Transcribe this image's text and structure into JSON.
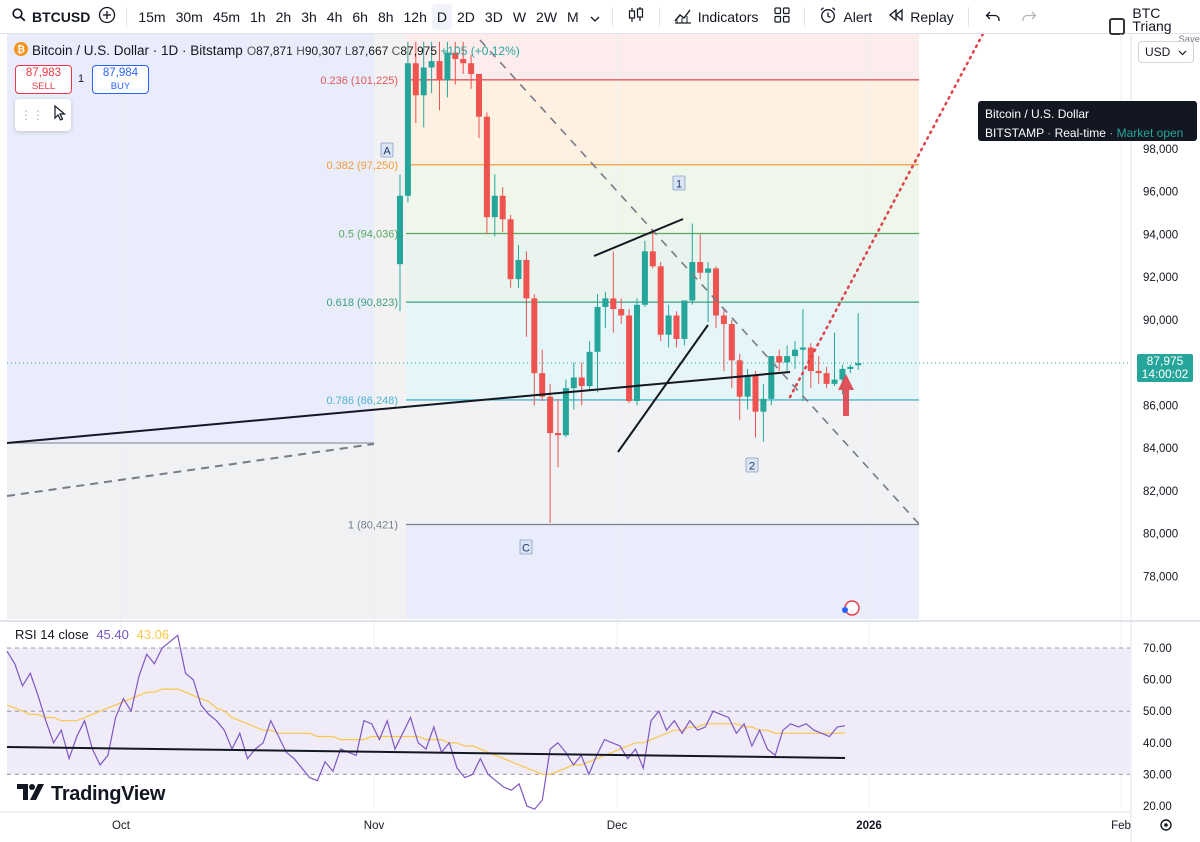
{
  "toolbar": {
    "symbol": "BTCUSD",
    "timeframes": [
      "15m",
      "30m",
      "45m",
      "1h",
      "2h",
      "3h",
      "4h",
      "6h",
      "8h",
      "12h",
      "D",
      "2D",
      "3D",
      "W",
      "2W",
      "M"
    ],
    "active_timeframe": "D",
    "indicators_label": "Indicators",
    "alert_label": "Alert",
    "replay_label": "Replay",
    "layout_name": "BTC Triang",
    "save_label": "Save"
  },
  "legend": {
    "title": "Bitcoin / U.S. Dollar · 1D · Bitstamp",
    "o_label": "O",
    "o": "87,871",
    "h_label": "H",
    "h": "90,307",
    "l_label": "L",
    "l": "87,667",
    "c_label": "C",
    "c": "87,975",
    "change": "+105 (+0.12%)"
  },
  "trade": {
    "sell_price": "87,983",
    "sell_label": "SELL",
    "qty": "1",
    "buy_price": "87,984",
    "buy_label": "BUY"
  },
  "currency": "USD",
  "tooltip": {
    "title": "Bitcoin / U.S. Dollar",
    "exchange": "BITSTAMP",
    "feed": "Real-time",
    "status": "Market open"
  },
  "price_tag": {
    "price": "87,975",
    "countdown": "14:00:02"
  },
  "price_axis": [
    {
      "label": "98,000",
      "value": 98000
    },
    {
      "label": "96,000",
      "value": 96000
    },
    {
      "label": "94,000",
      "value": 94000
    },
    {
      "label": "92,000",
      "value": 92000
    },
    {
      "label": "90,000",
      "value": 90000
    },
    {
      "label": "88,000",
      "value": 88000
    },
    {
      "label": "86,000",
      "value": 86000
    },
    {
      "label": "84,000",
      "value": 84000
    },
    {
      "label": "82,000",
      "value": 82000
    },
    {
      "label": "80,000",
      "value": 80000
    },
    {
      "label": "78,000",
      "value": 78000
    }
  ],
  "fib_levels": [
    {
      "label": "0.236 (101,225)",
      "value": 101225,
      "color": "#e0575b"
    },
    {
      "label": "0.382 (97,250)",
      "value": 97250,
      "color": "#f59b37"
    },
    {
      "label": "0.5 (94,036)",
      "value": 94036,
      "color": "#5aa85e"
    },
    {
      "label": "0.618 (90,823)",
      "value": 90823,
      "color": "#3d9e7d"
    },
    {
      "label": "0.786 (86,248)",
      "value": 86248,
      "color": "#4fb3cf"
    },
    {
      "label": "1 (80,421)",
      "value": 80421,
      "color": "#7a7f93"
    }
  ],
  "wave_labels": {
    "a": "A",
    "one": "1",
    "two": "2",
    "c": "C"
  },
  "rsi": {
    "name": "RSI 14 close",
    "value": "45.40",
    "ma_value": "43.06",
    "axis": [
      {
        "label": "70.00",
        "value": 70
      },
      {
        "label": "60.00",
        "value": 60
      },
      {
        "label": "50.00",
        "value": 50
      },
      {
        "label": "40.00",
        "value": 40
      },
      {
        "label": "30.00",
        "value": 30
      },
      {
        "label": "20.00",
        "value": 20
      }
    ]
  },
  "time_axis": [
    "Oct",
    "Nov",
    "Dec",
    "2026",
    "Feb"
  ],
  "brand": "TradingView",
  "colors": {
    "up": "#26a69a",
    "down": "#ef5350",
    "rsi": "#7e57c2",
    "rsi_ma": "#f7c948"
  },
  "chart_data": {
    "type": "candlestick",
    "candles": [
      {
        "o": 92600,
        "h": 96800,
        "l": 90400,
        "c": 95800
      },
      {
        "o": 95800,
        "h": 103000,
        "l": 95500,
        "c": 102000
      },
      {
        "o": 102000,
        "h": 103000,
        "l": 99200,
        "c": 100500
      },
      {
        "o": 100500,
        "h": 103000,
        "l": 99000,
        "c": 101800
      },
      {
        "o": 101800,
        "h": 103000,
        "l": 100600,
        "c": 102100
      },
      {
        "o": 102100,
        "h": 103000,
        "l": 99800,
        "c": 101200
      },
      {
        "o": 101200,
        "h": 103000,
        "l": 100400,
        "c": 102500
      },
      {
        "o": 102500,
        "h": 103000,
        "l": 101000,
        "c": 102200
      },
      {
        "o": 102200,
        "h": 103000,
        "l": 101500,
        "c": 102000
      },
      {
        "o": 102000,
        "h": 102400,
        "l": 100800,
        "c": 101500
      },
      {
        "o": 101500,
        "h": 101500,
        "l": 98500,
        "c": 99500
      },
      {
        "o": 99500,
        "h": 99700,
        "l": 94000,
        "c": 94800
      },
      {
        "o": 94800,
        "h": 96800,
        "l": 93900,
        "c": 95800
      },
      {
        "o": 95800,
        "h": 96200,
        "l": 94100,
        "c": 94700
      },
      {
        "o": 94700,
        "h": 94900,
        "l": 91500,
        "c": 91900
      },
      {
        "o": 91900,
        "h": 93500,
        "l": 91500,
        "c": 92800
      },
      {
        "o": 92800,
        "h": 93200,
        "l": 89200,
        "c": 91000
      },
      {
        "o": 91000,
        "h": 91200,
        "l": 86000,
        "c": 87500
      },
      {
        "o": 87500,
        "h": 88600,
        "l": 86200,
        "c": 86400
      },
      {
        "o": 86400,
        "h": 87000,
        "l": 80500,
        "c": 84700
      },
      {
        "o": 84700,
        "h": 86300,
        "l": 83100,
        "c": 84600
      },
      {
        "o": 84600,
        "h": 87200,
        "l": 84500,
        "c": 86800
      },
      {
        "o": 86800,
        "h": 88000,
        "l": 85800,
        "c": 87300
      },
      {
        "o": 87300,
        "h": 88000,
        "l": 86000,
        "c": 86900
      },
      {
        "o": 86900,
        "h": 89000,
        "l": 86700,
        "c": 88500
      },
      {
        "o": 88500,
        "h": 91200,
        "l": 86600,
        "c": 90600
      },
      {
        "o": 90600,
        "h": 91300,
        "l": 89600,
        "c": 91000
      },
      {
        "o": 91000,
        "h": 93200,
        "l": 89400,
        "c": 90500
      },
      {
        "o": 90500,
        "h": 91000,
        "l": 89800,
        "c": 90200
      },
      {
        "o": 90200,
        "h": 90500,
        "l": 86100,
        "c": 86200
      },
      {
        "o": 86200,
        "h": 91000,
        "l": 86000,
        "c": 90700
      },
      {
        "o": 90700,
        "h": 93700,
        "l": 90600,
        "c": 93200
      },
      {
        "o": 93200,
        "h": 94200,
        "l": 92400,
        "c": 92500
      },
      {
        "o": 92500,
        "h": 92700,
        "l": 89000,
        "c": 89300
      },
      {
        "o": 89300,
        "h": 90700,
        "l": 88700,
        "c": 90200
      },
      {
        "o": 90200,
        "h": 90400,
        "l": 88700,
        "c": 89100
      },
      {
        "o": 89100,
        "h": 90900,
        "l": 88800,
        "c": 90900
      },
      {
        "o": 90900,
        "h": 94500,
        "l": 90700,
        "c": 92700
      },
      {
        "o": 92700,
        "h": 94000,
        "l": 91900,
        "c": 92200
      },
      {
        "o": 92200,
        "h": 92700,
        "l": 89900,
        "c": 92400
      },
      {
        "o": 92400,
        "h": 92500,
        "l": 89600,
        "c": 90200
      },
      {
        "o": 90200,
        "h": 90500,
        "l": 87600,
        "c": 89800
      },
      {
        "o": 89800,
        "h": 90000,
        "l": 86800,
        "c": 88100
      },
      {
        "o": 88100,
        "h": 88400,
        "l": 85300,
        "c": 86400
      },
      {
        "o": 86400,
        "h": 87700,
        "l": 85800,
        "c": 87400
      },
      {
        "o": 87400,
        "h": 87600,
        "l": 84500,
        "c": 85700
      },
      {
        "o": 85700,
        "h": 87000,
        "l": 84300,
        "c": 86300
      },
      {
        "o": 86300,
        "h": 88300,
        "l": 86000,
        "c": 88300
      },
      {
        "o": 88300,
        "h": 88600,
        "l": 87600,
        "c": 88000
      },
      {
        "o": 88000,
        "h": 88800,
        "l": 87600,
        "c": 88300
      },
      {
        "o": 88300,
        "h": 89000,
        "l": 87700,
        "c": 88600
      },
      {
        "o": 88600,
        "h": 90500,
        "l": 86200,
        "c": 88700
      },
      {
        "o": 88700,
        "h": 88900,
        "l": 86800,
        "c": 87600
      },
      {
        "o": 87600,
        "h": 88300,
        "l": 87000,
        "c": 87500
      },
      {
        "o": 87500,
        "h": 87800,
        "l": 86800,
        "c": 87000
      },
      {
        "o": 87000,
        "h": 89400,
        "l": 86900,
        "c": 87200
      },
      {
        "o": 87200,
        "h": 87900,
        "l": 86500,
        "c": 87700
      },
      {
        "o": 87700,
        "h": 87900,
        "l": 87500,
        "c": 87800
      },
      {
        "o": 87871,
        "h": 90307,
        "l": 87667,
        "c": 87975
      }
    ],
    "rsi_values": [
      69,
      65,
      58,
      62,
      55,
      47,
      40,
      44,
      35,
      42,
      47,
      38,
      33,
      36,
      48,
      54,
      50,
      61,
      68,
      65,
      70,
      72,
      74,
      62,
      60,
      52,
      49,
      47,
      44,
      38,
      43,
      35,
      38,
      40,
      47,
      42,
      37,
      35,
      32,
      29,
      28,
      34,
      31,
      38,
      37,
      36,
      47,
      46,
      41,
      47,
      38,
      43,
      48,
      40,
      38,
      45,
      37,
      40,
      32,
      29,
      30,
      35,
      30,
      28,
      26,
      25,
      27,
      20,
      19,
      22,
      38,
      40,
      37,
      33,
      36,
      30,
      36,
      41,
      40,
      39,
      35,
      38,
      32,
      47,
      50,
      44,
      47,
      43,
      47,
      44,
      45,
      50,
      49,
      48,
      43,
      46,
      39,
      44,
      38,
      36,
      44,
      46,
      45,
      46,
      44,
      43,
      42,
      45,
      45.4
    ],
    "rsi_ma_values": [
      52,
      51,
      50,
      49,
      49,
      48,
      48,
      47,
      47,
      47,
      48,
      49,
      50,
      51,
      52,
      53,
      54,
      55,
      56,
      56,
      57,
      57,
      57,
      56,
      55,
      54,
      53,
      51,
      50,
      48,
      47,
      46,
      45,
      44,
      44,
      43,
      43,
      43,
      43,
      43,
      42,
      42,
      42,
      41,
      41,
      41,
      41,
      42,
      42,
      42,
      42,
      42,
      42,
      42,
      41,
      41,
      41,
      40,
      40,
      39,
      39,
      38,
      37,
      36,
      35,
      34,
      33,
      32,
      31,
      30,
      30,
      31,
      32,
      33,
      33,
      34,
      35,
      36,
      37,
      38,
      39,
      40,
      40,
      41,
      42,
      43,
      44,
      44,
      45,
      45,
      46,
      46,
      46,
      46,
      46,
      45,
      45,
      44,
      44,
      43,
      43,
      43,
      43,
      43,
      43,
      43,
      43,
      43,
      43.06
    ]
  }
}
